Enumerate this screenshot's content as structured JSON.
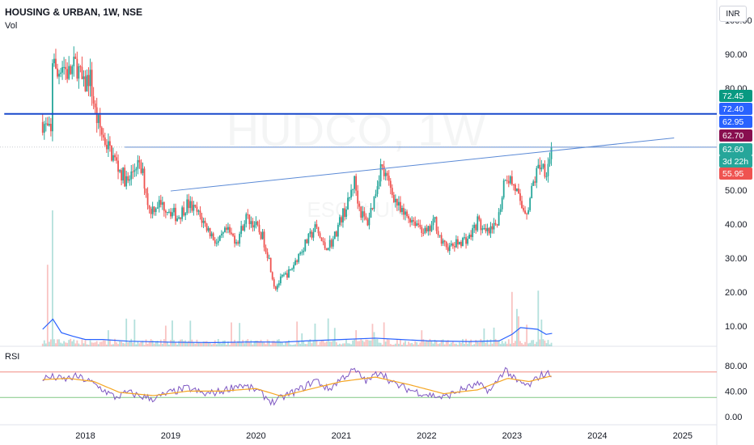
{
  "header": {
    "title": "HOUSING & URBAN, 1W, NSE",
    "volume_label": "Vol",
    "currency_button": "INR"
  },
  "watermark": {
    "symbol": "HUDCO, 1W",
    "sub": "ESG ft UN"
  },
  "colors": {
    "up": "#26a69a",
    "down": "#ef5350",
    "volume_ma": "#2962ff",
    "resistance": "#1848cc",
    "trendline": "#5b8ad6",
    "rsi": "#7e57c2",
    "rsi_ma": "#f5a623",
    "rsi_upper_band": "#f28b82",
    "rsi_lower_band": "#81c784"
  },
  "chart_data": [
    {
      "type": "line",
      "description_mode": "candlestick",
      "title": "HOUSING & URBAN, 1W, NSE",
      "x_ticks": [
        "2018",
        "2019",
        "2020",
        "2021",
        "2022",
        "2023",
        "2024",
        "2025"
      ],
      "x_range": [
        2017.0,
        2025.4
      ],
      "y_ticks": [
        "100.00",
        "90.00",
        "80.00",
        "70.00",
        "60.00",
        "50.00",
        "40.00",
        "30.00",
        "20.00",
        "10.00"
      ],
      "y_range": [
        4,
        104
      ],
      "price_path": [
        [
          2017.5,
          70
        ],
        [
          2017.6,
          66
        ],
        [
          2017.62,
          95
        ],
        [
          2017.66,
          82
        ],
        [
          2017.72,
          88
        ],
        [
          2017.8,
          84
        ],
        [
          2017.9,
          87
        ],
        [
          2017.98,
          80
        ],
        [
          2018.05,
          84
        ],
        [
          2018.12,
          72
        ],
        [
          2018.2,
          66
        ],
        [
          2018.32,
          60
        ],
        [
          2018.42,
          55
        ],
        [
          2018.5,
          52
        ],
        [
          2018.6,
          58
        ],
        [
          2018.68,
          54
        ],
        [
          2018.75,
          44
        ],
        [
          2018.85,
          46
        ],
        [
          2018.95,
          45
        ],
        [
          2019.08,
          42
        ],
        [
          2019.2,
          46
        ],
        [
          2019.32,
          43
        ],
        [
          2019.45,
          38
        ],
        [
          2019.55,
          34
        ],
        [
          2019.65,
          38
        ],
        [
          2019.78,
          35
        ],
        [
          2019.88,
          42
        ],
        [
          2019.98,
          40
        ],
        [
          2020.08,
          36
        ],
        [
          2020.15,
          30
        ],
        [
          2020.22,
          21
        ],
        [
          2020.3,
          24
        ],
        [
          2020.4,
          26
        ],
        [
          2020.5,
          31
        ],
        [
          2020.6,
          35
        ],
        [
          2020.7,
          39
        ],
        [
          2020.8,
          33
        ],
        [
          2020.9,
          35
        ],
        [
          2021.0,
          42
        ],
        [
          2021.08,
          46
        ],
        [
          2021.15,
          53
        ],
        [
          2021.22,
          44
        ],
        [
          2021.3,
          40
        ],
        [
          2021.38,
          47
        ],
        [
          2021.46,
          57
        ],
        [
          2021.55,
          52
        ],
        [
          2021.62,
          48
        ],
        [
          2021.7,
          43
        ],
        [
          2021.8,
          42
        ],
        [
          2021.9,
          40
        ],
        [
          2022.0,
          37
        ],
        [
          2022.1,
          41
        ],
        [
          2022.18,
          34
        ],
        [
          2022.28,
          33
        ],
        [
          2022.4,
          35
        ],
        [
          2022.5,
          36
        ],
        [
          2022.6,
          41
        ],
        [
          2022.68,
          37
        ],
        [
          2022.78,
          38
        ],
        [
          2022.85,
          43
        ],
        [
          2022.92,
          55
        ],
        [
          2022.98,
          53
        ],
        [
          2023.05,
          50
        ],
        [
          2023.1,
          45
        ],
        [
          2023.18,
          44
        ],
        [
          2023.25,
          52
        ],
        [
          2023.33,
          58
        ],
        [
          2023.4,
          56
        ],
        [
          2023.47,
          62.6
        ]
      ],
      "volume_path": [
        [
          2017.5,
          9
        ],
        [
          2017.62,
          12
        ],
        [
          2017.72,
          8
        ],
        [
          2017.85,
          7
        ],
        [
          2018.0,
          6
        ],
        [
          2018.2,
          6
        ],
        [
          2018.5,
          5.5
        ],
        [
          2019.0,
          5.2
        ],
        [
          2019.5,
          5.1
        ],
        [
          2020.0,
          5.3
        ],
        [
          2020.3,
          5.2
        ],
        [
          2020.6,
          5.6
        ],
        [
          2021.0,
          6.0
        ],
        [
          2021.4,
          6.4
        ],
        [
          2021.7,
          6.0
        ],
        [
          2022.0,
          5.6
        ],
        [
          2022.5,
          5.4
        ],
        [
          2022.85,
          5.6
        ],
        [
          2023.0,
          7.5
        ],
        [
          2023.1,
          9.5
        ],
        [
          2023.3,
          9.0
        ],
        [
          2023.4,
          7.5
        ],
        [
          2023.47,
          7.8
        ]
      ],
      "volume_spikes": [
        [
          2017.62,
          44
        ],
        [
          2017.56,
          28
        ],
        [
          2023.0,
          20
        ],
        [
          2023.05,
          15
        ],
        [
          2023.3,
          14
        ]
      ],
      "resistance_level": 72.4,
      "trendline": {
        "from": [
          2019.0,
          49.7
        ],
        "to": [
          2024.9,
          65.3
        ]
      },
      "price_labels": [
        {
          "text": "72.45",
          "color": "#089981"
        },
        {
          "text": "72.40",
          "color": "#2962ff"
        },
        {
          "text": "62.95",
          "color": "#2962ff"
        },
        {
          "text": "62.70",
          "color": "#880e4f"
        },
        {
          "text": "62.60",
          "color": "#26a69a"
        },
        {
          "text": "3d 22h",
          "color": "#26a69a"
        },
        {
          "text": "55.95",
          "color": "#ef5350"
        }
      ]
    },
    {
      "type": "line",
      "title": "RSI",
      "y_ticks": [
        "80.00",
        "40.00",
        "0.00"
      ],
      "y_range": [
        0,
        100
      ],
      "bands": {
        "upper": 70,
        "lower": 30
      },
      "series": [
        {
          "values": [
            [
              2017.5,
              60
            ],
            [
              2017.62,
              62
            ],
            [
              2017.75,
              58
            ],
            [
              2017.9,
              63
            ],
            [
              2018.05,
              55
            ],
            [
              2018.2,
              43
            ],
            [
              2018.35,
              30
            ],
            [
              2018.5,
              38
            ],
            [
              2018.65,
              32
            ],
            [
              2018.8,
              28
            ],
            [
              2019.0,
              38
            ],
            [
              2019.2,
              45
            ],
            [
              2019.4,
              35
            ],
            [
              2019.6,
              40
            ],
            [
              2019.8,
              50
            ],
            [
              2020.0,
              42
            ],
            [
              2020.2,
              22
            ],
            [
              2020.35,
              33
            ],
            [
              2020.55,
              45
            ],
            [
              2020.7,
              58
            ],
            [
              2020.85,
              42
            ],
            [
              2021.0,
              60
            ],
            [
              2021.15,
              73
            ],
            [
              2021.3,
              55
            ],
            [
              2021.46,
              72
            ],
            [
              2021.6,
              52
            ],
            [
              2021.8,
              42
            ],
            [
              2022.0,
              35
            ],
            [
              2022.2,
              30
            ],
            [
              2022.4,
              42
            ],
            [
              2022.6,
              50
            ],
            [
              2022.75,
              40
            ],
            [
              2022.92,
              75
            ],
            [
              2023.05,
              55
            ],
            [
              2023.2,
              48
            ],
            [
              2023.33,
              65
            ],
            [
              2023.47,
              68
            ]
          ]
        },
        {
          "values": [
            [
              2017.5,
              58
            ],
            [
              2017.8,
              60
            ],
            [
              2018.1,
              55
            ],
            [
              2018.4,
              38
            ],
            [
              2018.8,
              33
            ],
            [
              2019.2,
              40
            ],
            [
              2019.6,
              40
            ],
            [
              2020.0,
              44
            ],
            [
              2020.3,
              32
            ],
            [
              2020.6,
              42
            ],
            [
              2021.0,
              55
            ],
            [
              2021.4,
              62
            ],
            [
              2021.8,
              50
            ],
            [
              2022.2,
              36
            ],
            [
              2022.6,
              42
            ],
            [
              2022.95,
              60
            ],
            [
              2023.2,
              55
            ],
            [
              2023.47,
              64
            ]
          ]
        }
      ]
    }
  ]
}
